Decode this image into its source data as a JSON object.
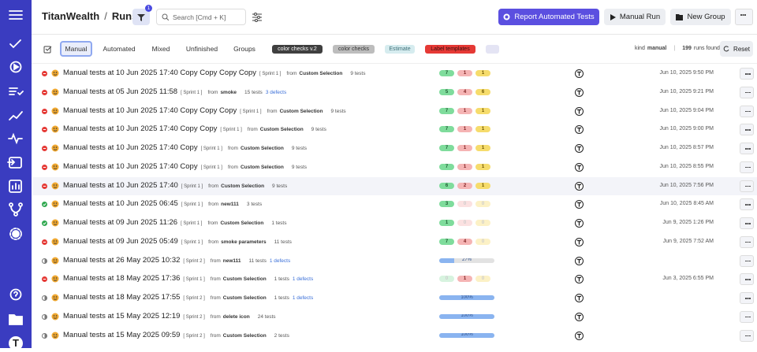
{
  "header": {
    "brand": "TitanWealth",
    "separator": "/",
    "page": "Runs",
    "filter_count": 1,
    "search_placeholder": "Search [Cmd + K]",
    "buttons": [
      "Report Automated Tests",
      "Manual Run",
      "New Group"
    ]
  },
  "tabs": [
    "Manual",
    "Automated",
    "Mixed",
    "Unfinished",
    "Groups"
  ],
  "tags": [
    "color checks v.2",
    "color checks",
    "Estimate",
    "Label templates"
  ],
  "summary": {
    "kind_label": "kind",
    "kind": "manual",
    "count": 199,
    "count_label": "runs found",
    "reset": "Reset"
  },
  "user_initial": "T",
  "table": {
    "from_label": "from",
    "rows": [
      {
        "status": "failed",
        "title": "Manual tests at 10 Jun 2025 17:40 Copy Copy Copy Copy",
        "sprint": "[ Sprint 1 ]",
        "source": "Custom Selection",
        "tests": "9 tests",
        "counts": [
          7,
          1,
          1
        ],
        "date": "Jun 10, 2025 9:50 PM"
      },
      {
        "status": "failed",
        "title": "Manual tests at 05 Jun 2025 11:58",
        "sprint": "[ Sprint 1 ]",
        "source": "smoke",
        "tests": "15 tests",
        "defects": "3 defects",
        "counts": [
          5,
          4,
          6
        ],
        "date": "Jun 10, 2025 9:21 PM"
      },
      {
        "status": "failed",
        "title": "Manual tests at 10 Jun 2025 17:40 Copy Copy Copy",
        "sprint": "[ Sprint 1 ]",
        "source": "Custom Selection",
        "tests": "9 tests",
        "counts": [
          7,
          1,
          1
        ],
        "date": "Jun 10, 2025 9:04 PM"
      },
      {
        "status": "failed",
        "title": "Manual tests at 10 Jun 2025 17:40 Copy Copy",
        "sprint": "[ Sprint 1 ]",
        "source": "Custom Selection",
        "tests": "9 tests",
        "counts": [
          7,
          1,
          1
        ],
        "date": "Jun 10, 2025 9:00 PM"
      },
      {
        "status": "failed",
        "title": "Manual tests at 10 Jun 2025 17:40 Copy",
        "sprint": "[ Sprint 1 ]",
        "source": "Custom Selection",
        "tests": "9 tests",
        "counts": [
          7,
          1,
          1
        ],
        "date": "Jun 10, 2025 8:57 PM"
      },
      {
        "status": "failed",
        "title": "Manual tests at 10 Jun 2025 17:40 Copy",
        "sprint": "[ Sprint 1 ]",
        "source": "Custom Selection",
        "tests": "9 tests",
        "counts": [
          7,
          1,
          1
        ],
        "date": "Jun 10, 2025 8:55 PM"
      },
      {
        "status": "failed",
        "title": "Manual tests at 10 Jun 2025 17:40",
        "sprint": "[ Sprint 1 ]",
        "source": "Custom Selection",
        "tests": "9 tests",
        "counts": [
          6,
          2,
          1
        ],
        "date": "Jun 10, 2025 7:56 PM",
        "hover": true
      },
      {
        "status": "passed",
        "title": "Manual tests at 10 Jun 2025 06:45",
        "sprint": "[ Sprint 1 ]",
        "source": "new111",
        "tests": "3 tests",
        "counts": [
          3,
          0,
          0
        ],
        "date": "Jun 10, 2025 8:45 AM"
      },
      {
        "status": "passed",
        "title": "Manual tests at 09 Jun 2025 11:26",
        "sprint": "[ Sprint 1 ]",
        "source": "Custom Selection",
        "tests": "1 tests",
        "counts": [
          1,
          0,
          0
        ],
        "date": "Jun 9, 2025 1:26 PM"
      },
      {
        "status": "failed",
        "title": "Manual tests at 09 Jun 2025 05:49",
        "sprint": "[ Sprint 1 ]",
        "source": "smoke parameters",
        "tests": "11 tests",
        "counts": [
          7,
          4,
          0
        ],
        "date": "Jun 9, 2025 7:52 AM"
      },
      {
        "status": "running",
        "title": "Manual tests at 26 May 2025 10:32",
        "sprint": "[ Sprint 2 ]",
        "source": "new111",
        "tests": "11 tests",
        "defects": "1 defects",
        "progress": "27%"
      },
      {
        "status": "failed",
        "title": "Manual tests at 18 May 2025 17:36",
        "sprint": "[ Sprint 1 ]",
        "source": "Custom Selection",
        "tests": "1 tests",
        "defects": "1 defects",
        "counts": [
          0,
          1,
          0
        ],
        "date": "Jun 3, 2025 6:55 PM"
      },
      {
        "status": "running",
        "title": "Manual tests at 18 May 2025 17:55",
        "sprint": "[ Sprint 2 ]",
        "source": "Custom Selection",
        "tests": "1 tests",
        "defects": "1 defects",
        "progress": "100%"
      },
      {
        "status": "running",
        "title": "Manual tests at 15 May 2025 12:19",
        "sprint": "[ Sprint 2 ]",
        "source": "delete icon",
        "tests": "24 tests",
        "progress": "100%"
      },
      {
        "status": "running",
        "title": "Manual tests at 15 May 2025 09:59",
        "sprint": "[ Sprint 2 ]",
        "source": "Custom Selection",
        "tests": "2 tests",
        "progress": "100%"
      }
    ]
  }
}
